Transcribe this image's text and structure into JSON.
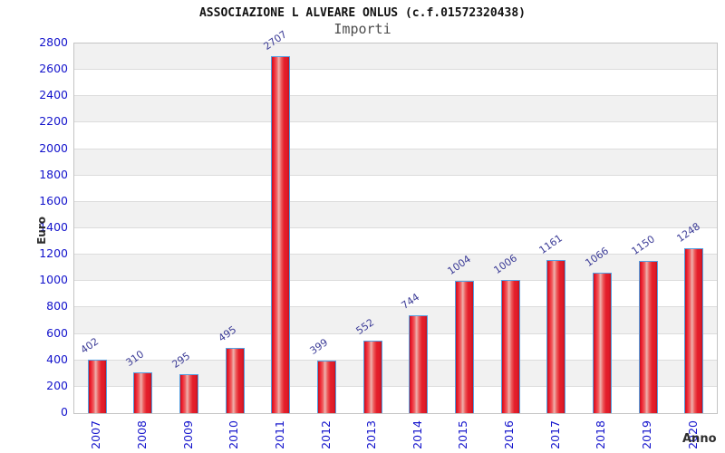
{
  "header": {
    "title": "ASSOCIAZIONE L ALVEARE ONLUS (c.f.01572320438)",
    "subtitle": "Importi"
  },
  "chart_data": {
    "type": "bar",
    "title": "ASSOCIAZIONE L ALVEARE ONLUS (c.f.01572320438)",
    "subtitle": "Importi",
    "categories": [
      "2007",
      "2008",
      "2009",
      "2010",
      "2011",
      "2012",
      "2013",
      "2014",
      "2015",
      "2016",
      "2017",
      "2018",
      "2019",
      "2020"
    ],
    "values": [
      402,
      310,
      295,
      495,
      2707,
      399,
      552,
      744,
      1004,
      1006,
      1161,
      1066,
      1150,
      1248
    ],
    "xlabel": "Anno",
    "ylabel": "Euro",
    "ylim": [
      0,
      2800
    ],
    "ytick_step": 200,
    "legend": "none",
    "grid": "horizontal gridlines every 200 with alternating gray bands",
    "label_rotation": {
      "values_deg": -35,
      "years_deg": -90
    },
    "colors": {
      "bar_fill": "#e41e2b",
      "bar_highlight": "#eeb2ae",
      "bar_border": "#55a0e2",
      "tick_text": "#1414cc",
      "value_text": "#3c3c97",
      "axis_title_text": "#2e2e2e",
      "band_gray": "#f1f1f1",
      "gridline": "#dcdcdc",
      "title_text": "#111111",
      "subtitle_text": "#4d4d4d"
    }
  }
}
